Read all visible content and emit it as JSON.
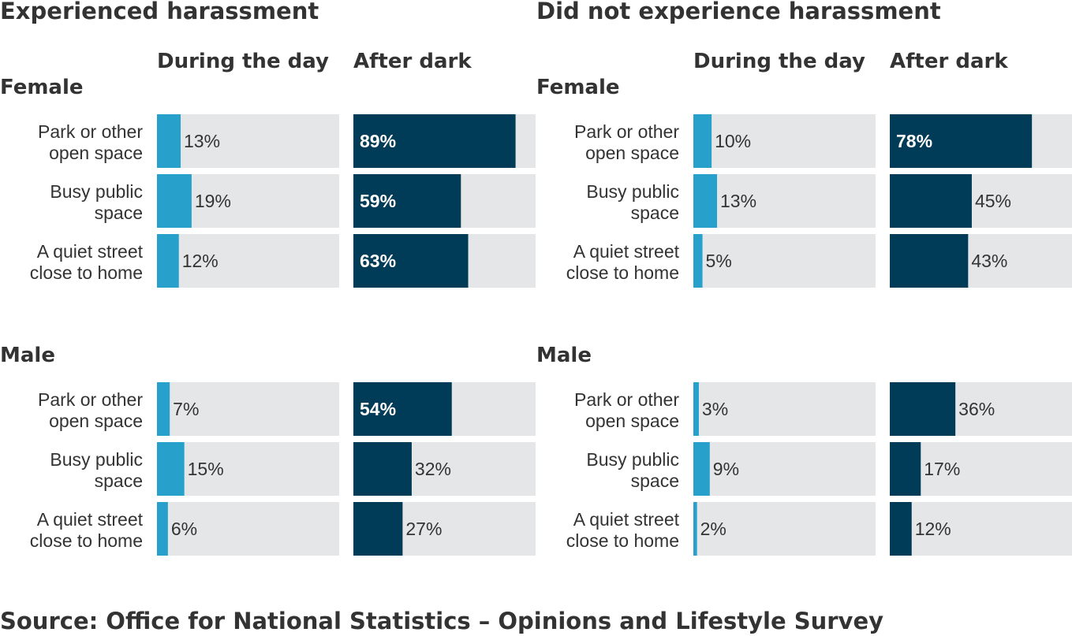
{
  "chart_data": {
    "type": "bar",
    "orientation": "horizontal",
    "unit": "%",
    "xlim": [
      0,
      100
    ],
    "grid": false,
    "colors": {
      "day": "#27a0cc",
      "dark": "#003c57",
      "track": "#e5e6e7",
      "text": "#333333"
    },
    "columns": [
      "During the day",
      "After dark"
    ],
    "categories": [
      "Park or other open space",
      "Busy public space",
      "A quiet street close to home"
    ],
    "category_lines": [
      [
        "Park or other",
        "open space"
      ],
      [
        "Busy public",
        "space"
      ],
      [
        "A quiet street",
        "close to home"
      ]
    ],
    "panels": [
      {
        "title": "Experienced harassment",
        "groups": [
          {
            "name": "Female",
            "day": [
              13,
              19,
              12
            ],
            "dark": [
              89,
              59,
              63
            ]
          },
          {
            "name": "Male",
            "day": [
              7,
              15,
              6
            ],
            "dark": [
              54,
              32,
              27
            ]
          }
        ]
      },
      {
        "title": "Did not experience harassment",
        "groups": [
          {
            "name": "Female",
            "day": [
              10,
              13,
              5
            ],
            "dark": [
              78,
              45,
              43
            ]
          },
          {
            "name": "Male",
            "day": [
              3,
              9,
              2
            ],
            "dark": [
              36,
              17,
              12
            ]
          }
        ]
      }
    ],
    "source": "Source: Office for National Statistics – Opinions and Lifestyle Survey"
  }
}
